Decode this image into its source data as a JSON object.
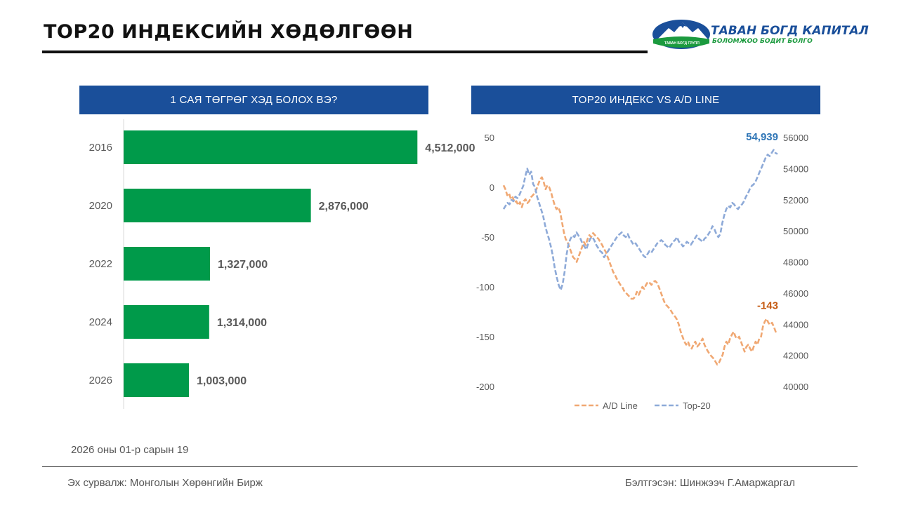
{
  "header": {
    "title": "TOP20 ИНДЕКСИЙН ХӨДӨЛГӨӨН",
    "logo_name": "ТАВАН БОГД КАПИТАЛ",
    "logo_slogan": "БОЛОМЖОО БОДИТ БОЛГО",
    "logo_small": "ТАВАН БОГД ГРУПП"
  },
  "colors": {
    "header_blue": "#1a4f9a",
    "bar_green": "#009a4a",
    "ad_line": "#f0a873",
    "top20_line": "#8eaad8",
    "ad_label": "#c55a11",
    "top20_label": "#2e75b6"
  },
  "chart_data": [
    {
      "type": "bar",
      "orientation": "horizontal",
      "title": "1 САЯ ТӨГРӨГ ХЭД БОЛОХ ВЭ?",
      "categories": [
        "2016",
        "2020",
        "2022",
        "2024",
        "2026"
      ],
      "values": [
        4512000,
        2876000,
        1327000,
        1314000,
        1003000
      ],
      "labels": [
        "4,512,000",
        "2,876,000",
        "1,327,000",
        "1,314,000",
        "1,003,000"
      ],
      "xlim": [
        0,
        4800000
      ],
      "grid": false
    },
    {
      "type": "line",
      "title": "TOP20 ИНДЕКС VS A/D LINE",
      "legend_position": "bottom",
      "y_left": {
        "ticks": [
          "50",
          "0",
          "-50",
          "-100",
          "-150",
          "-200"
        ],
        "lim": [
          -200,
          50
        ]
      },
      "y_right": {
        "ticks": [
          "56000",
          "54000",
          "52000",
          "50000",
          "48000",
          "46000",
          "44000",
          "42000",
          "40000"
        ],
        "lim": [
          40000,
          56000
        ]
      },
      "series": [
        {
          "name": "A/D Line",
          "axis": "left",
          "style": "dashed",
          "last_label": "-143",
          "values": [
            2,
            -2,
            -8,
            -6,
            -12,
            -10,
            -15,
            -14,
            -18,
            -15,
            -20,
            -14,
            -12,
            -16,
            -14,
            -10,
            -8,
            -6,
            -2,
            3,
            8,
            10,
            5,
            -2,
            2,
            0,
            -5,
            -12,
            -18,
            -22,
            -20,
            -25,
            -35,
            -45,
            -52,
            -55,
            -60,
            -65,
            -70,
            -72,
            -75,
            -70,
            -65,
            -60,
            -55,
            -58,
            -52,
            -48,
            -50,
            -46,
            -48,
            -50,
            -52,
            -55,
            -58,
            -62,
            -65,
            -70,
            -75,
            -80,
            -85,
            -88,
            -92,
            -95,
            -98,
            -100,
            -104,
            -106,
            -108,
            -110,
            -112,
            -112,
            -110,
            -105,
            -108,
            -104,
            -100,
            -102,
            -98,
            -95,
            -96,
            -98,
            -95,
            -94,
            -96,
            -100,
            -105,
            -110,
            -115,
            -118,
            -120,
            -122,
            -125,
            -128,
            -130,
            -133,
            -138,
            -145,
            -150,
            -155,
            -158,
            -155,
            -160,
            -162,
            -158,
            -155,
            -160,
            -158,
            -155,
            -152,
            -158,
            -162,
            -165,
            -168,
            -170,
            -172,
            -175,
            -178,
            -176,
            -172,
            -168,
            -160,
            -155,
            -158,
            -152,
            -148,
            -145,
            -150,
            -152,
            -150,
            -155,
            -160,
            -165,
            -160,
            -158,
            -162,
            -165,
            -160,
            -155,
            -158,
            -152,
            -150,
            -140,
            -135,
            -132,
            -136,
            -138,
            -136,
            -140,
            -145,
            -143
          ]
        },
        {
          "name": "Top-20",
          "axis": "right",
          "style": "dashed",
          "last_label": "54,939",
          "values": [
            51400,
            51600,
            51800,
            51700,
            52000,
            51900,
            52200,
            52100,
            52300,
            52600,
            52900,
            53500,
            54000,
            53600,
            53800,
            53000,
            52800,
            52200,
            51800,
            51400,
            51000,
            50400,
            49900,
            49500,
            49000,
            48400,
            47600,
            47000,
            46500,
            46200,
            46600,
            47400,
            48500,
            49200,
            49500,
            49700,
            49600,
            49900,
            49700,
            49500,
            49200,
            49000,
            48800,
            49200,
            49500,
            49600,
            49400,
            49100,
            48900,
            48700,
            48600,
            48300,
            48500,
            48700,
            48900,
            49100,
            49300,
            49500,
            49700,
            49800,
            49900,
            49700,
            49600,
            49800,
            49500,
            49300,
            49100,
            49200,
            49000,
            48800,
            48600,
            48400,
            48300,
            48500,
            48700,
            48600,
            48800,
            49000,
            49200,
            49300,
            49400,
            49300,
            49100,
            49000,
            48900,
            49100,
            49300,
            49400,
            49600,
            49300,
            49200,
            49000,
            49100,
            49300,
            49200,
            49100,
            49300,
            49500,
            49700,
            49500,
            49400,
            49300,
            49500,
            49600,
            49800,
            50000,
            50300,
            50100,
            49800,
            49600,
            49800,
            50500,
            51000,
            51400,
            51600,
            51500,
            51800,
            51700,
            51500,
            51400,
            51600,
            51700,
            51900,
            52200,
            52400,
            52700,
            52900,
            53000,
            53200,
            53500,
            53800,
            54100,
            54400,
            54700,
            54900,
            54800,
            55000,
            55200,
            55000,
            54939
          ]
        }
      ]
    }
  ],
  "footer": {
    "date": "2026 оны 01-р сарын 19",
    "source": "Эх сурвалж: Монголын Хөрөнгийн Бирж",
    "author": "Бэлтгэсэн: Шинжээч Г.Амаржаргал"
  }
}
